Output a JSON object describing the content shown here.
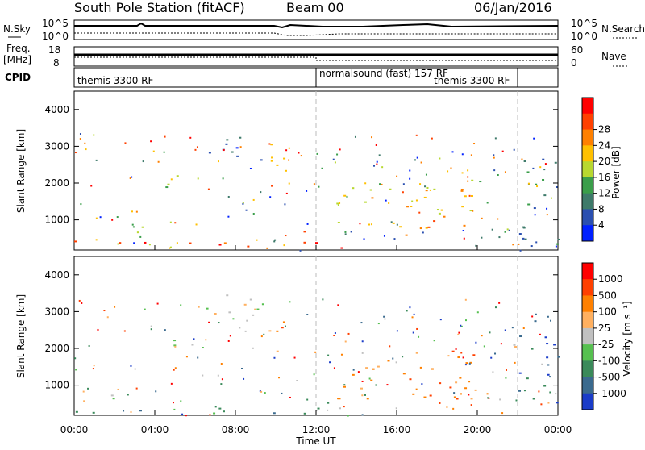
{
  "header": {
    "station": "South Pole Station (fitACF)",
    "beam": "Beam 00",
    "date": "06/Jan/2016"
  },
  "summary_panels": {
    "nsky_label": "N.Sky",
    "nsky_ticks": [
      "10^5",
      "10^0"
    ],
    "nsearch_label": "N.Search",
    "nsearch_ticks": [
      "10^5",
      "10^0"
    ],
    "freq_label": "Freq.",
    "freq_unit": "[MHz]",
    "freq_ticks": [
      "18",
      "8"
    ],
    "nave_label": "Nave",
    "nave_ticks": [
      "60",
      "0"
    ],
    "cpid_label": "CPID",
    "cpid_segments": [
      {
        "label": "themis 3300 RF",
        "start_hour": 0,
        "end_hour": 12
      },
      {
        "label": "normalsound (fast) 157 RF",
        "start_hour": 12,
        "end_hour": 22
      },
      {
        "label": "themis 3300 RF",
        "start_hour": 18.5,
        "end_hour": 22
      }
    ]
  },
  "colors": {
    "power": [
      "#0020ff",
      "#2a4fb0",
      "#3e7a6a",
      "#3a9e4a",
      "#b8d830",
      "#ffc000",
      "#ff8000",
      "#ff4000",
      "#ff0000"
    ],
    "velocity": [
      "#1a3cc8",
      "#3a6a8e",
      "#3a8a5a",
      "#56c050",
      "#c0c0c0",
      "#ffb060",
      "#ff8000",
      "#ff4000",
      "#ff0000"
    ]
  },
  "chart_data": [
    {
      "type": "heatmap",
      "name": "Power",
      "ylabel": "Slant Range [km]",
      "xlabel": "",
      "xlim": [
        0,
        24
      ],
      "ylim": [
        180,
        4500
      ],
      "y_ticks": [
        "1000",
        "2000",
        "3000",
        "4000"
      ],
      "colorbar_label": "Power [dB]",
      "colorbar_ticks": [
        "4",
        "8",
        "12",
        "16",
        "20",
        "24",
        "28"
      ],
      "regions": [
        {
          "x": [
            0,
            10.5
          ],
          "y": [
            250,
            450
          ],
          "level": 7
        },
        {
          "x": [
            1.5,
            3.5
          ],
          "y": [
            650,
            900
          ],
          "level": 4
        },
        {
          "x": [
            3.8,
            6
          ],
          "y": [
            1850,
            2250
          ],
          "level": 3
        },
        {
          "x": [
            6.5,
            9.5
          ],
          "y": [
            2600,
            3500
          ],
          "level": 1
        },
        {
          "x": [
            9.5,
            10.5
          ],
          "y": [
            1800,
            3200
          ],
          "level": 5
        },
        {
          "x": [
            11.2,
            13.5
          ],
          "y": [
            200,
            700
          ],
          "level": 8
        },
        {
          "x": [
            13,
            20
          ],
          "y": [
            600,
            2000
          ],
          "level": 5
        },
        {
          "x": [
            17.5,
            19
          ],
          "y": [
            700,
            1100
          ],
          "level": 7
        },
        {
          "x": [
            19.5,
            22
          ],
          "y": [
            1900,
            2150
          ],
          "level": 3
        },
        {
          "x": [
            22,
            24
          ],
          "y": [
            300,
            2800
          ],
          "level": 2
        }
      ]
    },
    {
      "type": "heatmap",
      "name": "Velocity",
      "ylabel": "Slant Range [km]",
      "xlabel": "Time UT",
      "xlim": [
        0,
        24
      ],
      "ylim": [
        180,
        4500
      ],
      "x_ticks": [
        "00:00",
        "04:00",
        "08:00",
        "12:00",
        "16:00",
        "20:00",
        "00:00"
      ],
      "y_ticks": [
        "1000",
        "2000",
        "3000",
        "4000"
      ],
      "colorbar_label": "Velocity [m s⁻¹]",
      "colorbar_ticks": [
        "1000",
        "500",
        "100",
        "25",
        "-25",
        "-100",
        "-500",
        "-1000"
      ],
      "regions": [
        {
          "x": [
            0,
            10.5
          ],
          "y": [
            250,
            450
          ],
          "level": 2
        },
        {
          "x": [
            1.5,
            3.5
          ],
          "y": [
            650,
            900
          ],
          "level": 4
        },
        {
          "x": [
            3.8,
            6
          ],
          "y": [
            1850,
            2250
          ],
          "level": 4
        },
        {
          "x": [
            6.5,
            9.5
          ],
          "y": [
            2600,
            3500
          ],
          "level": 4
        },
        {
          "x": [
            9.5,
            10.5
          ],
          "y": [
            1800,
            3200
          ],
          "level": 6
        },
        {
          "x": [
            11.2,
            13.5
          ],
          "y": [
            200,
            700
          ],
          "level": 3
        },
        {
          "x": [
            13,
            20
          ],
          "y": [
            600,
            2000
          ],
          "level": 6
        },
        {
          "x": [
            17.5,
            19
          ],
          "y": [
            700,
            1100
          ],
          "level": 7
        },
        {
          "x": [
            19.5,
            22
          ],
          "y": [
            1900,
            2150
          ],
          "level": 4
        },
        {
          "x": [
            22,
            24
          ],
          "y": [
            300,
            2800
          ],
          "level": 1
        }
      ]
    }
  ]
}
